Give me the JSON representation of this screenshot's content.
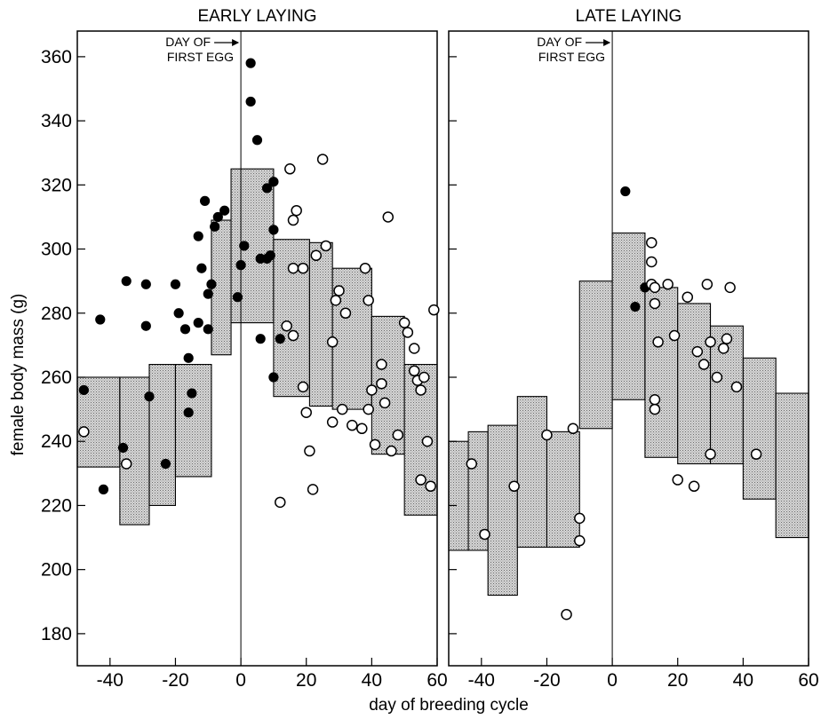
{
  "figure": {
    "xlabel": "day of breeding cycle",
    "ylabel": "female body mass (g)"
  },
  "chart_data": [
    {
      "type": "scatter",
      "title": "EARLY LAYING",
      "annotation": "DAY OF\nFIRST EGG",
      "annotation_x": 0,
      "xlim": [
        -50,
        60
      ],
      "ylim": [
        170,
        368
      ],
      "xticks": [
        -40,
        -20,
        0,
        20,
        40,
        60
      ],
      "xtick_labels": [
        "-40",
        "-20",
        "0",
        "20",
        "40",
        "60"
      ],
      "yticks": [
        180,
        200,
        220,
        240,
        260,
        280,
        300,
        320,
        340,
        360
      ],
      "band": [
        [
          -50,
          -37,
          232,
          260
        ],
        [
          -37,
          -28,
          214,
          260
        ],
        [
          -28,
          -20,
          220,
          264
        ],
        [
          -20,
          -9,
          229,
          264
        ],
        [
          -9,
          -3,
          267,
          309
        ],
        [
          -3,
          10,
          277,
          325
        ],
        [
          10,
          21,
          254,
          303
        ],
        [
          21,
          28,
          251,
          302
        ],
        [
          28,
          40,
          250,
          294
        ],
        [
          40,
          50,
          236,
          279
        ],
        [
          50,
          60,
          217,
          264
        ]
      ],
      "filled_points": [
        [
          -48,
          256
        ],
        [
          -43,
          278
        ],
        [
          -42,
          225
        ],
        [
          -36,
          238
        ],
        [
          -35,
          290
        ],
        [
          -29,
          289
        ],
        [
          -29,
          276
        ],
        [
          -28,
          254
        ],
        [
          -23,
          233
        ],
        [
          -20,
          289
        ],
        [
          -19,
          280
        ],
        [
          -17,
          275
        ],
        [
          -16,
          249
        ],
        [
          -16,
          266
        ],
        [
          -15,
          255
        ],
        [
          -13,
          304
        ],
        [
          -13,
          277
        ],
        [
          -12,
          294
        ],
        [
          -11,
          315
        ],
        [
          -10,
          286
        ],
        [
          -10,
          275
        ],
        [
          -9,
          289
        ],
        [
          -8,
          307
        ],
        [
          -7,
          310
        ],
        [
          -5,
          312
        ],
        [
          -1,
          285
        ],
        [
          0,
          295
        ],
        [
          1,
          301
        ],
        [
          3,
          358
        ],
        [
          3,
          346
        ],
        [
          5,
          334
        ],
        [
          6,
          297
        ],
        [
          6,
          272
        ],
        [
          8,
          319
        ],
        [
          8,
          297
        ],
        [
          9,
          298
        ],
        [
          10,
          321
        ],
        [
          10,
          306
        ],
        [
          10,
          260
        ],
        [
          12,
          272
        ]
      ],
      "open_points": [
        [
          -48,
          243
        ],
        [
          -35,
          233
        ],
        [
          12,
          221
        ],
        [
          14,
          276
        ],
        [
          15,
          325
        ],
        [
          16,
          309
        ],
        [
          16,
          294
        ],
        [
          16,
          273
        ],
        [
          17,
          312
        ],
        [
          19,
          257
        ],
        [
          19,
          294
        ],
        [
          20,
          249
        ],
        [
          21,
          237
        ],
        [
          22,
          225
        ],
        [
          23,
          298
        ],
        [
          25,
          328
        ],
        [
          26,
          301
        ],
        [
          28,
          246
        ],
        [
          28,
          271
        ],
        [
          29,
          284
        ],
        [
          30,
          287
        ],
        [
          31,
          250
        ],
        [
          32,
          280
        ],
        [
          34,
          245
        ],
        [
          37,
          244
        ],
        [
          38,
          294
        ],
        [
          39,
          284
        ],
        [
          39,
          250
        ],
        [
          40,
          256
        ],
        [
          41,
          239
        ],
        [
          43,
          264
        ],
        [
          43,
          258
        ],
        [
          44,
          252
        ],
        [
          45,
          310
        ],
        [
          46,
          237
        ],
        [
          48,
          242
        ],
        [
          50,
          277
        ],
        [
          51,
          274
        ],
        [
          53,
          262
        ],
        [
          53,
          269
        ],
        [
          54,
          259
        ],
        [
          55,
          228
        ],
        [
          55,
          256
        ],
        [
          56,
          260
        ],
        [
          57,
          240
        ],
        [
          58,
          226
        ],
        [
          59,
          281
        ]
      ]
    },
    {
      "type": "scatter",
      "title": "LATE LAYING",
      "annotation": "DAY OF\nFIRST EGG",
      "annotation_x": 0,
      "xlim": [
        -50,
        60
      ],
      "ylim": [
        170,
        368
      ],
      "xticks": [
        -40,
        -20,
        0,
        20,
        40,
        60
      ],
      "xtick_labels": [
        "-40",
        "-20",
        "0",
        "20",
        "40",
        "60"
      ],
      "yticks": [
        180,
        200,
        220,
        240,
        260,
        280,
        300,
        320,
        340,
        360
      ],
      "band": [
        [
          -50,
          -44,
          206,
          240
        ],
        [
          -44,
          -38,
          206,
          243
        ],
        [
          -38,
          -29,
          192,
          245
        ],
        [
          -29,
          -20,
          207,
          254
        ],
        [
          -20,
          -10,
          207,
          243
        ],
        [
          -10,
          0,
          244,
          290
        ],
        [
          0,
          10,
          253,
          305
        ],
        [
          10,
          20,
          235,
          288
        ],
        [
          20,
          30,
          233,
          283
        ],
        [
          30,
          40,
          233,
          276
        ],
        [
          40,
          50,
          222,
          266
        ],
        [
          50,
          60,
          210,
          255
        ]
      ],
      "filled_points": [
        [
          4,
          318
        ],
        [
          7,
          282
        ],
        [
          10,
          288
        ]
      ],
      "open_points": [
        [
          -43,
          233
        ],
        [
          -39,
          211
        ],
        [
          -30,
          226
        ],
        [
          -20,
          242
        ],
        [
          -14,
          186
        ],
        [
          -12,
          244
        ],
        [
          -10,
          216
        ],
        [
          -10,
          209
        ],
        [
          12,
          302
        ],
        [
          12,
          296
        ],
        [
          12,
          289
        ],
        [
          13,
          288
        ],
        [
          13,
          283
        ],
        [
          13,
          253
        ],
        [
          13,
          250
        ],
        [
          14,
          271
        ],
        [
          17,
          289
        ],
        [
          19,
          273
        ],
        [
          20,
          228
        ],
        [
          23,
          285
        ],
        [
          25,
          226
        ],
        [
          26,
          268
        ],
        [
          28,
          264
        ],
        [
          29,
          289
        ],
        [
          30,
          236
        ],
        [
          30,
          271
        ],
        [
          32,
          260
        ],
        [
          34,
          269
        ],
        [
          35,
          272
        ],
        [
          36,
          288
        ],
        [
          38,
          257
        ],
        [
          44,
          236
        ]
      ]
    }
  ]
}
